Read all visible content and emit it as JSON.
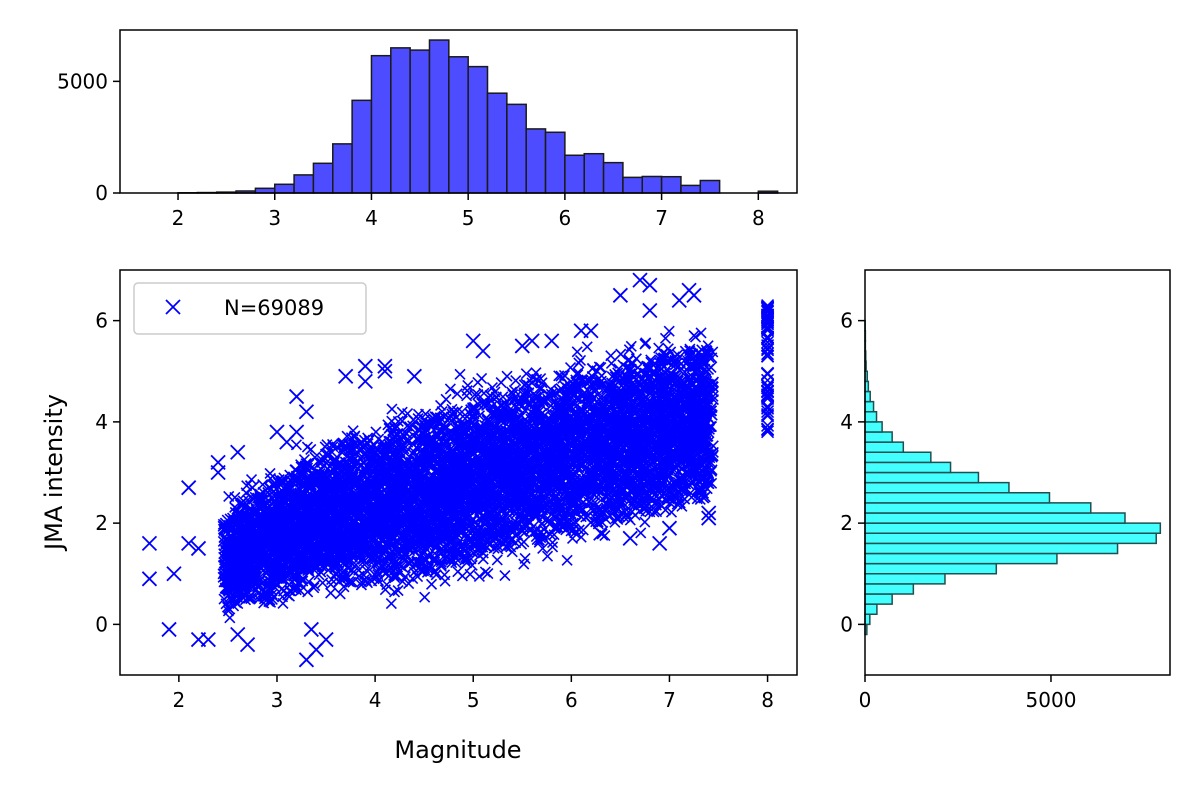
{
  "chart_data": [
    {
      "id": "top",
      "type": "bar",
      "subtype": "histogram",
      "xlim": [
        1.4,
        8.4
      ],
      "ylim": [
        0,
        7300
      ],
      "xticks": [
        2,
        3,
        4,
        5,
        6,
        7,
        8
      ],
      "yticks": [
        0,
        5000
      ],
      "bin_edges": [
        1.6,
        1.8,
        2.0,
        2.2,
        2.4,
        2.6,
        2.8,
        3.0,
        3.2,
        3.4,
        3.6,
        3.8,
        4.0,
        4.2,
        4.4,
        4.6,
        4.8,
        5.0,
        5.2,
        5.4,
        5.6,
        5.8,
        6.0,
        6.2,
        6.4,
        6.6,
        6.8,
        7.0,
        7.2,
        7.4,
        7.6,
        7.8,
        8.0,
        8.2
      ],
      "values": [
        0,
        0,
        10,
        20,
        40,
        90,
        210,
        390,
        810,
        1330,
        2200,
        4150,
        6150,
        6500,
        6400,
        6850,
        6100,
        5660,
        4470,
        3970,
        2870,
        2720,
        1690,
        1760,
        1360,
        700,
        740,
        730,
        340,
        560,
        0,
        0,
        80
      ],
      "fill": "#4d4dff",
      "edge": "#1a1a1a"
    },
    {
      "id": "main",
      "type": "scatter",
      "xlabel": "Magnitude",
      "ylabel": "JMA intensity",
      "xlim": [
        1.4,
        8.3
      ],
      "ylim": [
        -1.0,
        7.0
      ],
      "xticks": [
        2,
        3,
        4,
        5,
        6,
        7,
        8
      ],
      "yticks": [
        0,
        2,
        4,
        6
      ],
      "color": "#0000ff",
      "marker": "x",
      "legend": {
        "label": "N=69089",
        "placement": "upper-left"
      },
      "x_range": [
        1.7,
        8.0
      ],
      "trend_low": [
        [
          2.5,
          -0.1
        ],
        [
          3.5,
          0.2
        ],
        [
          4.5,
          0.3
        ],
        [
          5.5,
          0.9
        ],
        [
          6.5,
          1.4
        ],
        [
          7.45,
          1.9
        ]
      ],
      "trend_high": [
        [
          2.5,
          2.7
        ],
        [
          3.5,
          4.0
        ],
        [
          4.5,
          4.8
        ],
        [
          5.5,
          5.4
        ],
        [
          6.5,
          5.9
        ],
        [
          7.45,
          6.2
        ]
      ],
      "outliers": [
        [
          1.7,
          1.6
        ],
        [
          1.7,
          0.9
        ],
        [
          1.95,
          1.0
        ],
        [
          1.9,
          -0.1
        ],
        [
          2.1,
          2.7
        ],
        [
          2.1,
          1.6
        ],
        [
          2.2,
          1.5
        ],
        [
          2.2,
          -0.3
        ],
        [
          2.3,
          -0.3
        ],
        [
          2.4,
          3.0
        ],
        [
          2.4,
          3.2
        ],
        [
          2.6,
          3.4
        ],
        [
          2.75,
          2.7
        ],
        [
          2.6,
          -0.2
        ],
        [
          2.7,
          -0.4
        ],
        [
          3.0,
          3.8
        ],
        [
          3.2,
          4.5
        ],
        [
          3.3,
          4.2
        ],
        [
          3.1,
          3.6
        ],
        [
          3.2,
          3.8
        ],
        [
          3.3,
          -0.7
        ],
        [
          3.4,
          -0.5
        ],
        [
          3.5,
          -0.3
        ],
        [
          3.35,
          -0.1
        ],
        [
          3.7,
          4.9
        ],
        [
          3.9,
          5.1
        ],
        [
          4.1,
          5.0
        ],
        [
          4.1,
          5.1
        ],
        [
          3.9,
          4.8
        ],
        [
          4.4,
          4.9
        ],
        [
          5.0,
          5.6
        ],
        [
          5.1,
          5.4
        ],
        [
          5.5,
          5.5
        ],
        [
          5.6,
          5.6
        ],
        [
          5.8,
          5.6
        ],
        [
          6.1,
          5.8
        ],
        [
          6.2,
          5.8
        ],
        [
          6.5,
          6.5
        ],
        [
          6.7,
          6.8
        ],
        [
          6.8,
          6.7
        ],
        [
          6.8,
          6.2
        ],
        [
          7.2,
          6.6
        ],
        [
          7.25,
          6.5
        ],
        [
          7.1,
          6.4
        ],
        [
          6.3,
          1.8
        ],
        [
          6.6,
          1.7
        ],
        [
          6.9,
          1.6
        ],
        [
          7.4,
          2.2
        ],
        [
          7.4,
          2.1
        ],
        [
          7.0,
          1.9
        ]
      ],
      "mag8_column": {
        "x": 8.0,
        "y_range": [
          3.8,
          6.3
        ]
      }
    },
    {
      "id": "right",
      "type": "bar",
      "subtype": "horizontal-histogram",
      "xlim": [
        0,
        8200
      ],
      "ylim": [
        -1.0,
        7.0
      ],
      "xticks": [
        0,
        5000
      ],
      "yticks": [
        0,
        2,
        4,
        6
      ],
      "bin_edges": [
        -0.2,
        0.0,
        0.2,
        0.4,
        0.6,
        0.8,
        1.0,
        1.2,
        1.4,
        1.6,
        1.8,
        2.0,
        2.2,
        2.4,
        2.6,
        2.8,
        3.0,
        3.2,
        3.4,
        3.6,
        3.8,
        4.0,
        4.2,
        4.4,
        4.6,
        4.8,
        5.0,
        5.2,
        5.4,
        5.6,
        5.8,
        6.0
      ],
      "values": [
        50,
        130,
        320,
        730,
        1300,
        2150,
        3530,
        5160,
        6790,
        7830,
        7940,
        6990,
        6070,
        4960,
        3870,
        3050,
        2300,
        1770,
        1030,
        730,
        460,
        310,
        230,
        140,
        90,
        60,
        30,
        20,
        10,
        10,
        5
      ],
      "fill": "#44ffff",
      "edge": "#1f4f4f"
    }
  ]
}
